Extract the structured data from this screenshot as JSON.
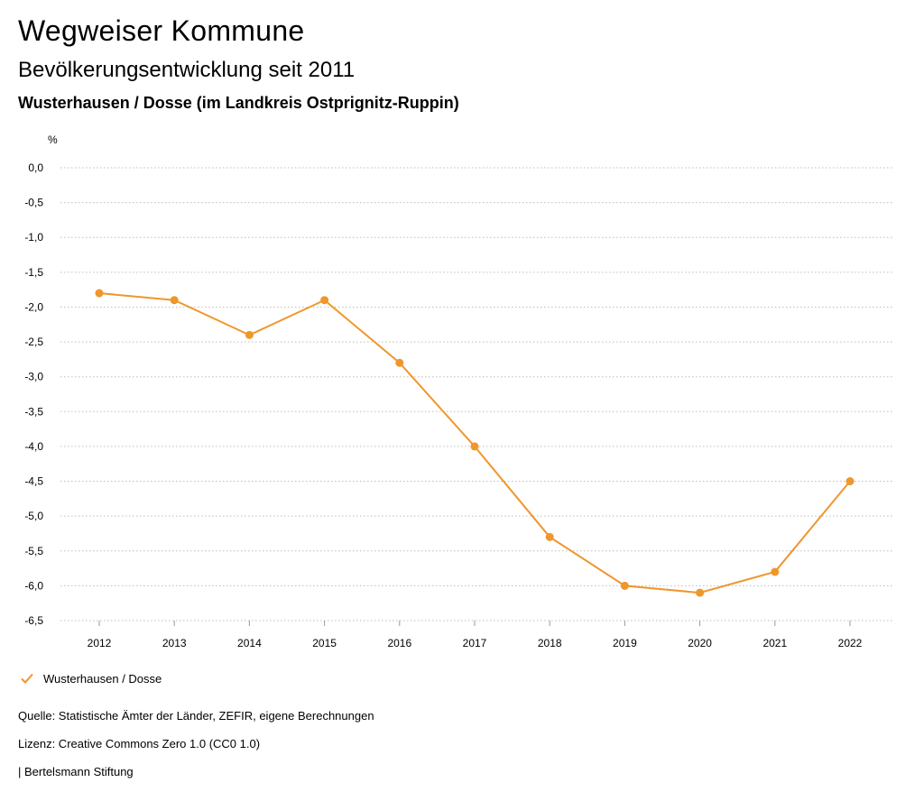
{
  "header": {
    "title": "Wegweiser Kommune",
    "subtitle": "Bevölkerungsentwicklung seit 2011",
    "place": "Wusterhausen / Dosse (im Landkreis Ostprignitz-Ruppin)"
  },
  "chart_data": {
    "type": "line",
    "title": "Bevölkerungsentwicklung seit 2011",
    "ylabel": "%",
    "xlabel": "",
    "ylim": [
      -6.5,
      0
    ],
    "yticks": [
      "0,0",
      "-0,5",
      "-1,0",
      "-1,5",
      "-2,0",
      "-2,5",
      "-3,0",
      "-3,5",
      "-4,0",
      "-4,5",
      "-5,0",
      "-5,5",
      "-6,0",
      "-6,5"
    ],
    "ytick_values": [
      0,
      -0.5,
      -1,
      -1.5,
      -2,
      -2.5,
      -3,
      -3.5,
      -4,
      -4.5,
      -5,
      -5.5,
      -6,
      -6.5
    ],
    "categories": [
      "2012",
      "2013",
      "2014",
      "2015",
      "2016",
      "2017",
      "2018",
      "2019",
      "2020",
      "2021",
      "2022"
    ],
    "grid": true,
    "legend_position": "bottom-left",
    "series": [
      {
        "name": "Wusterhausen / Dosse",
        "color": "#f0962b",
        "values": [
          -1.8,
          -1.9,
          -2.4,
          -1.9,
          -2.8,
          -4.0,
          -5.3,
          -6.0,
          -6.1,
          -5.8,
          -4.5
        ]
      }
    ]
  },
  "legend": {
    "label": "Wusterhausen / Dosse",
    "icon": "check-icon"
  },
  "footer": {
    "source": "Quelle: Statistische Ämter der Länder, ZEFIR, eigene Berechnungen",
    "license": "Lizenz: Creative Commons Zero 1.0 (CC0 1.0)",
    "brand": "| Bertelsmann Stiftung"
  }
}
